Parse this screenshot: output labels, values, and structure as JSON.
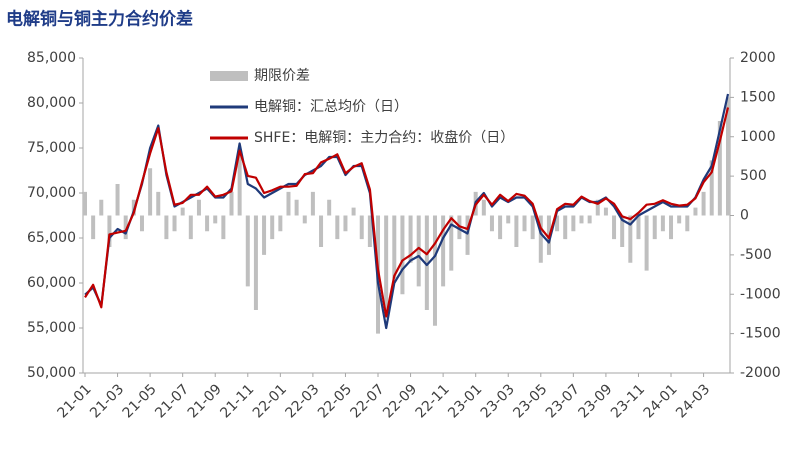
{
  "chart_data": {
    "type": "line",
    "title": "电解铜与铜主力合约价差",
    "categories": [
      "21-01",
      null,
      null,
      null,
      "21-03",
      null,
      null,
      null,
      "21-05",
      null,
      null,
      null,
      "21-07",
      null,
      null,
      null,
      "21-09",
      null,
      null,
      null,
      "21-11",
      null,
      null,
      null,
      "22-01",
      null,
      null,
      null,
      "22-03",
      null,
      null,
      null,
      "22-05",
      null,
      null,
      null,
      "22-07",
      null,
      null,
      null,
      "22-09",
      null,
      null,
      null,
      "22-11",
      null,
      null,
      null,
      "23-01",
      null,
      null,
      null,
      "23-03",
      null,
      null,
      null,
      "23-05",
      null,
      null,
      null,
      "23-07",
      null,
      null,
      null,
      "23-09",
      null,
      null,
      null,
      "23-11",
      null,
      null,
      null,
      "24-01",
      null,
      null,
      null,
      "24-03",
      null,
      null,
      null
    ],
    "series": [
      {
        "name": "期限价差",
        "type": "bar",
        "axis": "y2",
        "color": "#bfbfbf",
        "values": [
          300,
          -300,
          200,
          -400,
          400,
          -300,
          200,
          -200,
          600,
          300,
          -300,
          -200,
          100,
          -300,
          200,
          -200,
          -100,
          -300,
          300,
          800,
          -900,
          -1200,
          -500,
          -300,
          -200,
          300,
          200,
          -100,
          300,
          -400,
          200,
          -300,
          -200,
          100,
          -300,
          -400,
          -1500,
          -1300,
          -800,
          -1000,
          -600,
          -900,
          -1200,
          -1400,
          -900,
          -700,
          -300,
          -500,
          300,
          200,
          -200,
          -300,
          -100,
          -400,
          -200,
          -300,
          -600,
          -500,
          -200,
          -300,
          -200,
          -100,
          -100,
          200,
          100,
          -300,
          -400,
          -600,
          -300,
          -700,
          -300,
          -200,
          -300,
          -100,
          -200,
          100,
          300,
          700,
          1200,
          1500
        ]
      },
      {
        "name": "电解铜：汇总均价（日）",
        "type": "line",
        "color": "#1f3a7a",
        "values": [
          58700,
          59500,
          57500,
          65000,
          66000,
          65500,
          68000,
          71000,
          75000,
          77500,
          72000,
          68500,
          69000,
          69500,
          70000,
          70500,
          69500,
          69500,
          70500,
          75500,
          71000,
          70500,
          69500,
          70000,
          70500,
          71000,
          71000,
          72000,
          72500,
          73000,
          74000,
          74000,
          72000,
          73000,
          73000,
          70000,
          60000,
          55000,
          60000,
          61500,
          62500,
          63000,
          62000,
          63000,
          65000,
          66500,
          66000,
          65500,
          69000,
          70000,
          68500,
          69500,
          69000,
          69500,
          69500,
          68500,
          65500,
          64500,
          68000,
          68500,
          68500,
          69500,
          69000,
          69000,
          69500,
          68500,
          67000,
          66500,
          67500,
          68000,
          68500,
          69000,
          68500,
          68500,
          68500,
          69500,
          71500,
          73000,
          77000,
          81000
        ]
      },
      {
        "name": "SHFE：电解铜：主力合约：收盘价（日）",
        "type": "line",
        "color": "#c00000",
        "values": [
          58400,
          59800,
          57300,
          65400,
          65600,
          65800,
          67800,
          71200,
          74400,
          77200,
          72300,
          68700,
          68900,
          69800,
          69800,
          70700,
          69600,
          69800,
          70200,
          74700,
          71900,
          71700,
          70000,
          70300,
          70700,
          70700,
          70800,
          72100,
          72200,
          73400,
          73800,
          74300,
          72200,
          72900,
          73300,
          70400,
          61500,
          56300,
          60800,
          62500,
          63100,
          63900,
          63200,
          64400,
          65900,
          67200,
          66300,
          66000,
          68700,
          69800,
          68700,
          69800,
          69100,
          69900,
          69700,
          68800,
          66100,
          65000,
          68200,
          68800,
          68700,
          69600,
          69100,
          68800,
          69400,
          68800,
          67400,
          67100,
          67800,
          68700,
          68800,
          69200,
          68800,
          68600,
          68700,
          69400,
          71200,
          72300,
          75800,
          79500
        ]
      }
    ],
    "ylim": [
      50000,
      85000
    ],
    "yticks": [
      {
        "value": 50000,
        "label": "50,000"
      },
      {
        "value": 55000,
        "label": "55,000"
      },
      {
        "value": 60000,
        "label": "60,000"
      },
      {
        "value": 65000,
        "label": "65,000"
      },
      {
        "value": 70000,
        "label": "70,000"
      },
      {
        "value": 75000,
        "label": "75,000"
      },
      {
        "value": 80000,
        "label": "80,000"
      },
      {
        "value": 85000,
        "label": "85,000"
      }
    ],
    "y2lim": [
      -2000,
      2000
    ],
    "y2ticks": [
      -2000,
      -1500,
      -1000,
      -500,
      0,
      500,
      1000,
      1500,
      2000
    ],
    "legend": "top-left"
  }
}
